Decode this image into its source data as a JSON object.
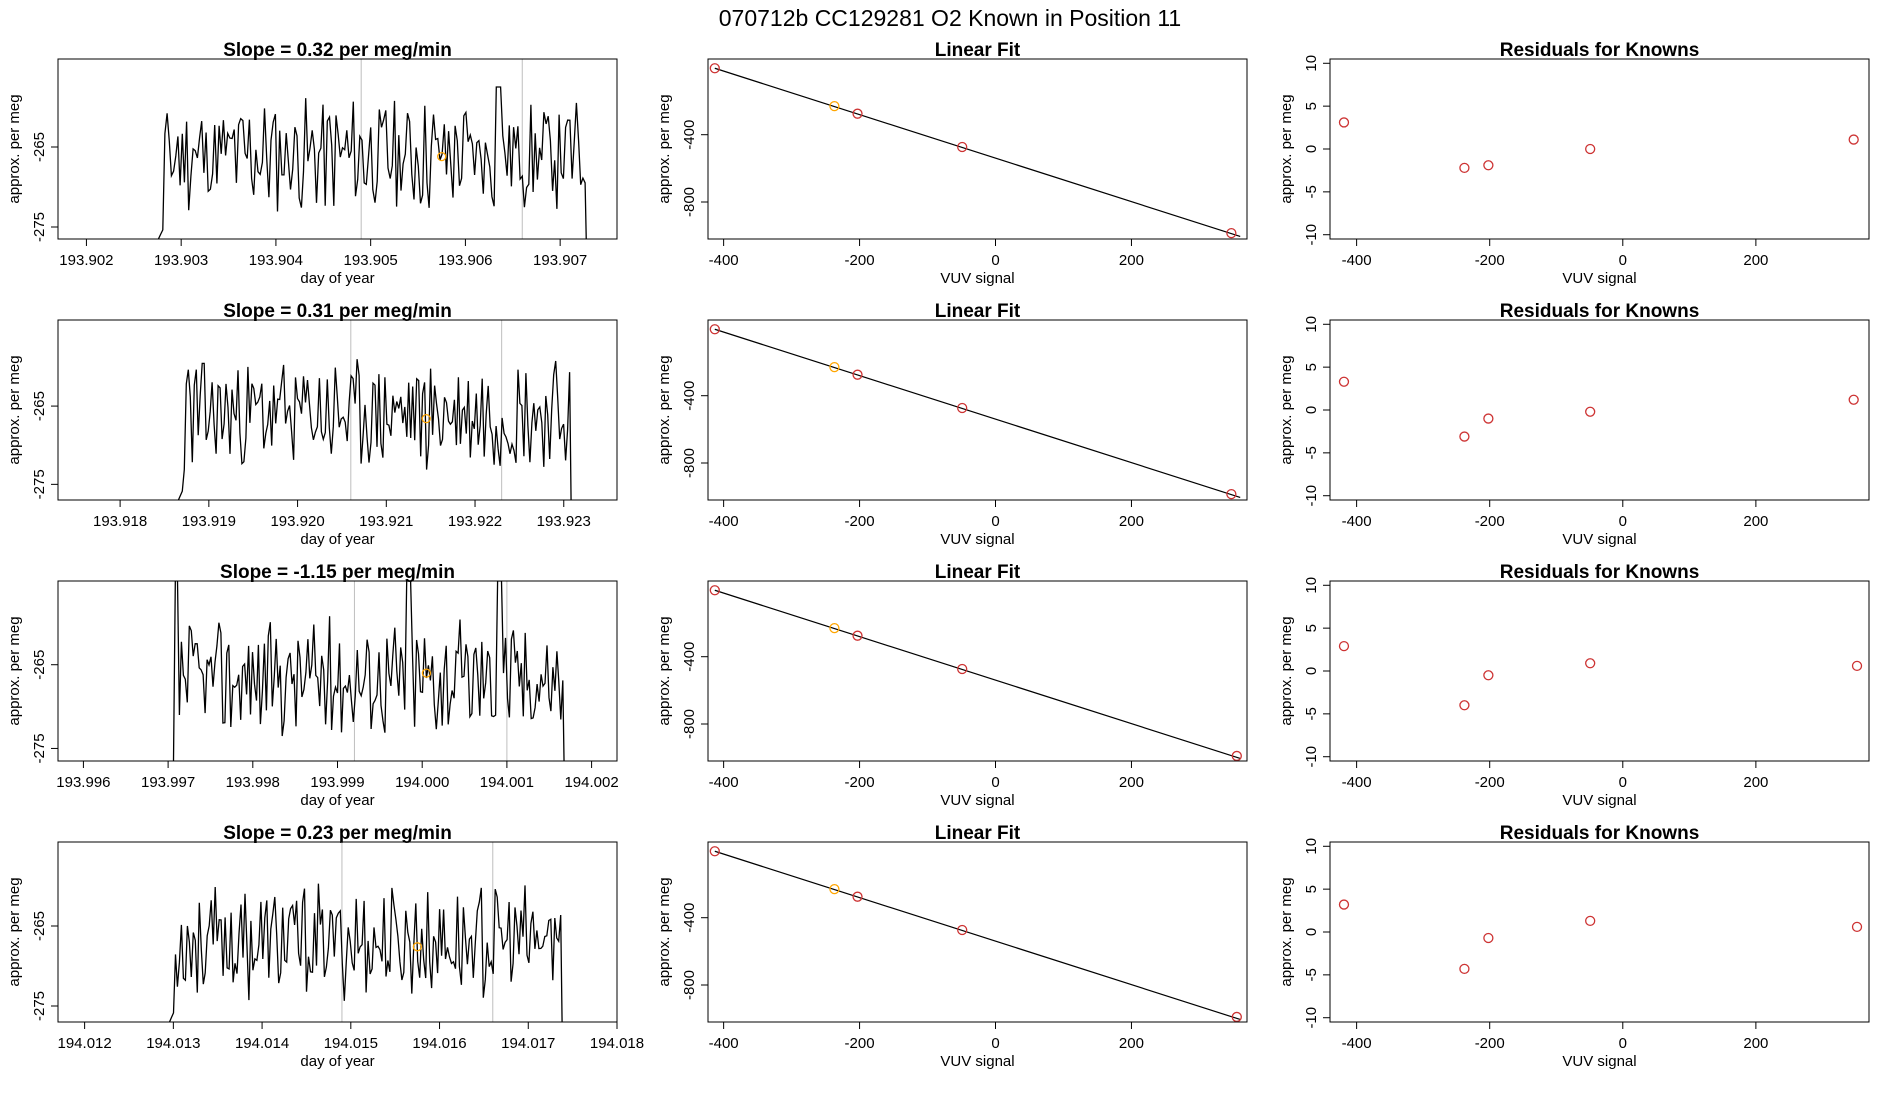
{
  "page_title": "070712b      CC129281    O2 Known in Position  11",
  "colors": {
    "line": "#000000",
    "point": "#cd3333",
    "highlight": "#ffa500",
    "vline": "#bebebe",
    "axis": "#000000"
  },
  "chart_data": [
    {
      "type": "line",
      "row": 0,
      "kind": "timeseries",
      "title": "Slope =  0.32  per meg/min",
      "xlabel": "day of year",
      "ylabel": "approx. per meg",
      "xlim": [
        193.9017,
        193.9076
      ],
      "ylim": [
        -276.5,
        -254
      ],
      "xticks": [
        193.902,
        193.903,
        193.904,
        193.905,
        193.906,
        193.907
      ],
      "xtick_labels": [
        "193.902",
        "193.903",
        "193.904",
        "193.905",
        "193.906",
        "193.907"
      ],
      "yticks": [
        -265,
        -275
      ],
      "ytick_labels": [
        "-265",
        "-275"
      ],
      "vlines": [
        193.9049,
        193.9066
      ],
      "highlight": {
        "x": 193.90575,
        "y": -266.2
      },
      "series": {
        "x_start": 193.9026,
        "x_end": 193.9074,
        "y_base": -266,
        "seed": 11,
        "spikes": [
          [
            0.78,
            -257.5
          ]
        ]
      }
    },
    {
      "type": "scatter",
      "row": 0,
      "kind": "fit",
      "title": "Linear Fit",
      "xlabel": "VUV signal",
      "ylabel": "approx. per meg",
      "xlim": [
        -423,
        370
      ],
      "ylim": [
        -1020,
        50
      ],
      "xticks": [
        -400,
        -200,
        0,
        200
      ],
      "xtick_labels": [
        "-400",
        "-200",
        "0",
        "200"
      ],
      "yticks": [
        -400,
        -800
      ],
      "ytick_labels": [
        "-400",
        "-800"
      ],
      "fit_line": {
        "x": [
          -413,
          360
        ],
        "y": [
          -5,
          -1005
        ]
      },
      "points": {
        "x": [
          -413,
          -237,
          -203,
          -49,
          347
        ],
        "y": [
          -5,
          -230,
          -275,
          -473,
          -985
        ]
      },
      "highlight_index": 1
    },
    {
      "type": "scatter",
      "row": 0,
      "kind": "residuals",
      "title": "Residuals for Knowns",
      "xlabel": "VUV signal",
      "ylabel": "approx. per meg",
      "xlim": [
        -440,
        370
      ],
      "ylim": [
        -10.5,
        10.5
      ],
      "xticks": [
        -400,
        -200,
        0,
        200
      ],
      "xtick_labels": [
        "-400",
        "-200",
        "0",
        "200"
      ],
      "yticks": [
        10,
        5,
        0,
        -5,
        -10
      ],
      "ytick_labels": [
        "10",
        "5",
        "0",
        "-5",
        "-10"
      ],
      "points": {
        "x": [
          -419,
          -238,
          -202,
          -49,
          347
        ],
        "y": [
          3.1,
          -2.2,
          -1.9,
          0.0,
          1.1
        ]
      }
    },
    {
      "type": "line",
      "row": 1,
      "kind": "timeseries",
      "title": "Slope =  0.31  per meg/min",
      "xlabel": "day of year",
      "ylabel": "approx. per meg",
      "xlim": [
        193.9173,
        193.9236
      ],
      "ylim": [
        -277,
        -254
      ],
      "xticks": [
        193.918,
        193.919,
        193.92,
        193.921,
        193.922,
        193.923
      ],
      "xtick_labels": [
        "193.918",
        "193.919",
        "193.920",
        "193.921",
        "193.922",
        "193.923"
      ],
      "yticks": [
        -265,
        -275
      ],
      "ytick_labels": [
        "-265",
        "-275"
      ],
      "vlines": [
        193.9206,
        193.9223
      ],
      "highlight": {
        "x": 193.92145,
        "y": -266.6
      },
      "series": {
        "x_start": 193.9185,
        "x_end": 193.9232,
        "y_base": -266,
        "seed": 23,
        "spikes": []
      }
    },
    {
      "type": "scatter",
      "row": 1,
      "kind": "fit",
      "title": "Linear Fit",
      "xlabel": "VUV signal",
      "ylabel": "approx. per meg",
      "xlim": [
        -423,
        370
      ],
      "ylim": [
        -1020,
        50
      ],
      "xticks": [
        -400,
        -200,
        0,
        200
      ],
      "xtick_labels": [
        "-400",
        "-200",
        "0",
        "200"
      ],
      "yticks": [
        -400,
        -800
      ],
      "ytick_labels": [
        "-400",
        "-800"
      ],
      "fit_line": {
        "x": [
          -413,
          360
        ],
        "y": [
          -5,
          -1005
        ]
      },
      "points": {
        "x": [
          -413,
          -237,
          -203,
          -49,
          347
        ],
        "y": [
          -5,
          -230,
          -275,
          -473,
          -985
        ]
      },
      "highlight_index": 1
    },
    {
      "type": "scatter",
      "row": 1,
      "kind": "residuals",
      "title": "Residuals for Knowns",
      "xlabel": "VUV signal",
      "ylabel": "approx. per meg",
      "xlim": [
        -440,
        370
      ],
      "ylim": [
        -10.5,
        10.5
      ],
      "xticks": [
        -400,
        -200,
        0,
        200
      ],
      "xtick_labels": [
        "-400",
        "-200",
        "0",
        "200"
      ],
      "yticks": [
        10,
        5,
        0,
        -5,
        -10
      ],
      "ytick_labels": [
        "10",
        "5",
        "0",
        "-5",
        "-10"
      ],
      "points": {
        "x": [
          -419,
          -238,
          -202,
          -49,
          347
        ],
        "y": [
          3.3,
          -3.1,
          -1.0,
          -0.2,
          1.2
        ]
      }
    },
    {
      "type": "line",
      "row": 2,
      "kind": "timeseries",
      "title": "Slope =  -1.15  per meg/min",
      "xlabel": "day of year",
      "ylabel": "approx. per meg",
      "xlim": [
        193.9957,
        194.0023
      ],
      "ylim": [
        -276.5,
        -255
      ],
      "xticks": [
        193.996,
        193.997,
        193.998,
        193.999,
        194.0,
        194.001,
        194.002
      ],
      "xtick_labels": [
        "193.996",
        "193.997",
        "193.998",
        "193.999",
        "194.000",
        "194.001",
        "194.002"
      ],
      "yticks": [
        -265,
        -275
      ],
      "ytick_labels": [
        "-265",
        "-275"
      ],
      "vlines": [
        193.9992,
        194.001
      ],
      "highlight": {
        "x": 194.00005,
        "y": -266.0
      },
      "series": {
        "x_start": 193.9969,
        "x_end": 194.0018,
        "y_base": -266.5,
        "seed": 37,
        "spikes": [
          [
            0.04,
            -254
          ],
          [
            0.6,
            -255
          ],
          [
            0.82,
            -255
          ]
        ]
      }
    },
    {
      "type": "scatter",
      "row": 2,
      "kind": "fit",
      "title": "Linear Fit",
      "xlabel": "VUV signal",
      "ylabel": "approx. per meg",
      "xlim": [
        -423,
        370
      ],
      "ylim": [
        -1020,
        50
      ],
      "xticks": [
        -400,
        -200,
        0,
        200
      ],
      "xtick_labels": [
        "-400",
        "-200",
        "0",
        "200"
      ],
      "yticks": [
        -400,
        -800
      ],
      "ytick_labels": [
        "-400",
        "-800"
      ],
      "fit_line": {
        "x": [
          -413,
          360
        ],
        "y": [
          -5,
          -1005
        ]
      },
      "points": {
        "x": [
          -413,
          -237,
          -203,
          -49,
          355
        ],
        "y": [
          -5,
          -230,
          -275,
          -473,
          -990
        ]
      },
      "highlight_index": 1
    },
    {
      "type": "scatter",
      "row": 2,
      "kind": "residuals",
      "title": "Residuals for Knowns",
      "xlabel": "VUV signal",
      "ylabel": "approx. per meg",
      "xlim": [
        -440,
        370
      ],
      "ylim": [
        -10.5,
        10.5
      ],
      "xticks": [
        -400,
        -200,
        0,
        200
      ],
      "xtick_labels": [
        "-400",
        "-200",
        "0",
        "200"
      ],
      "yticks": [
        10,
        5,
        0,
        -5,
        -10
      ],
      "ytick_labels": [
        "10",
        "5",
        "0",
        "-5",
        "-10"
      ],
      "points": {
        "x": [
          -419,
          -238,
          -202,
          -49,
          352
        ],
        "y": [
          2.9,
          -4.0,
          -0.5,
          0.9,
          0.6
        ]
      }
    },
    {
      "type": "line",
      "row": 3,
      "kind": "timeseries",
      "title": "Slope =  0.23  per meg/min",
      "xlabel": "day of year",
      "ylabel": "approx. per meg",
      "xlim": [
        194.0117,
        194.018
      ],
      "ylim": [
        -277,
        -254.5
      ],
      "xticks": [
        194.012,
        194.013,
        194.014,
        194.015,
        194.016,
        194.017,
        194.018
      ],
      "xtick_labels": [
        "194.012",
        "194.013",
        "194.014",
        "194.015",
        "194.016",
        "194.017",
        "194.018"
      ],
      "yticks": [
        -265,
        -275
      ],
      "ytick_labels": [
        "-265",
        "-275"
      ],
      "vlines": [
        194.0149,
        194.0166
      ],
      "highlight": {
        "x": 194.01575,
        "y": -267.6
      },
      "series": {
        "x_start": 194.0128,
        "x_end": 194.0175,
        "y_base": -267,
        "seed": 53,
        "spikes": []
      }
    },
    {
      "type": "scatter",
      "row": 3,
      "kind": "fit",
      "title": "Linear Fit",
      "xlabel": "VUV signal",
      "ylabel": "approx. per meg",
      "xlim": [
        -423,
        370
      ],
      "ylim": [
        -1020,
        50
      ],
      "xticks": [
        -400,
        -200,
        0,
        200
      ],
      "xtick_labels": [
        "-400",
        "-200",
        "0",
        "200"
      ],
      "yticks": [
        -400,
        -800
      ],
      "ytick_labels": [
        "-400",
        "-800"
      ],
      "fit_line": {
        "x": [
          -413,
          360
        ],
        "y": [
          -5,
          -1005
        ]
      },
      "points": {
        "x": [
          -413,
          -237,
          -203,
          -49,
          355
        ],
        "y": [
          -5,
          -230,
          -275,
          -473,
          -990
        ]
      },
      "highlight_index": 1
    },
    {
      "type": "scatter",
      "row": 3,
      "kind": "residuals",
      "title": "Residuals for Knowns",
      "xlabel": "VUV signal",
      "ylabel": "approx. per meg",
      "xlim": [
        -440,
        370
      ],
      "ylim": [
        -10.5,
        10.5
      ],
      "xticks": [
        -400,
        -200,
        0,
        200
      ],
      "xtick_labels": [
        "-400",
        "-200",
        "0",
        "200"
      ],
      "yticks": [
        10,
        5,
        0,
        -5,
        -10
      ],
      "ytick_labels": [
        "10",
        "5",
        "0",
        "-5",
        "-10"
      ],
      "points": {
        "x": [
          -419,
          -238,
          -202,
          -49,
          352
        ],
        "y": [
          3.2,
          -4.3,
          -0.7,
          1.3,
          0.6
        ]
      }
    }
  ]
}
